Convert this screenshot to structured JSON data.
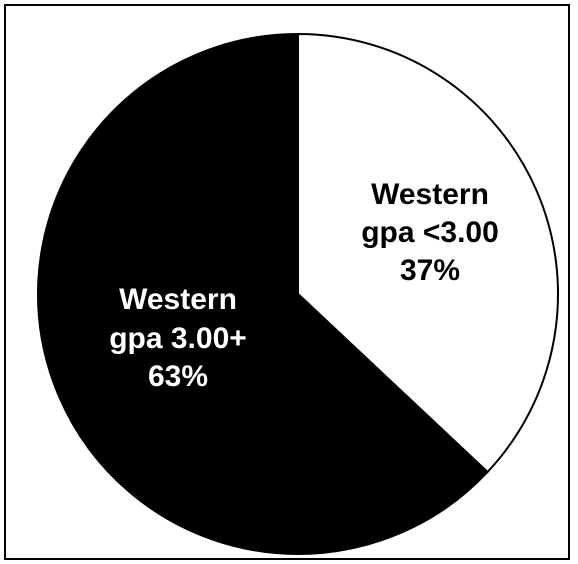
{
  "chart_data": {
    "type": "pie",
    "title": "",
    "slices": [
      {
        "label_lines": [
          "Western",
          "gpa <3.00",
          "37%"
        ],
        "value": 37,
        "color": "#ffffff",
        "text_color": "#000000"
      },
      {
        "label_lines": [
          "Western",
          "gpa 3.00+",
          "63%"
        ],
        "value": 63,
        "color": "#000000",
        "text_color": "#ffffff"
      }
    ],
    "start_angle_deg": 0,
    "direction": "clockwise",
    "legend": "none"
  }
}
